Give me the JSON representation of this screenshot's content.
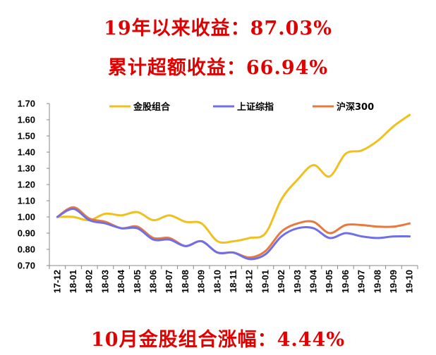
{
  "headlines": {
    "ytd_return": "19年以来收益：87.03%",
    "excess_return": "累计超额收益：66.94%",
    "monthly_gain": "10月金股组合涨幅：4.44%"
  },
  "chart_data": {
    "type": "line",
    "x": [
      "17-12",
      "18-01",
      "18-02",
      "18-03",
      "18-04",
      "18-05",
      "18-06",
      "18-07",
      "18-08",
      "18-09",
      "18-10",
      "18-11",
      "18-12",
      "19-01",
      "19-02",
      "19-03",
      "19-04",
      "19-05",
      "19-06",
      "19-07",
      "19-08",
      "19-09",
      "19-10"
    ],
    "ylim": [
      0.7,
      1.7
    ],
    "yticks": [
      "0.70",
      "0.80",
      "0.90",
      "1.00",
      "1.10",
      "1.20",
      "1.30",
      "1.40",
      "1.50",
      "1.60",
      "1.70"
    ],
    "legend_position": "top",
    "grid": false,
    "series": [
      {
        "name": "金股组合",
        "color": "#f0c020",
        "values": [
          1.0,
          1.0,
          0.98,
          1.02,
          1.01,
          1.03,
          0.98,
          1.01,
          0.97,
          0.96,
          0.85,
          0.85,
          0.87,
          0.9,
          1.11,
          1.23,
          1.32,
          1.25,
          1.39,
          1.41,
          1.47,
          1.56,
          1.63
        ]
      },
      {
        "name": "上证综指",
        "color": "#6f6fe8",
        "values": [
          1.0,
          1.05,
          0.98,
          0.96,
          0.93,
          0.93,
          0.86,
          0.86,
          0.82,
          0.85,
          0.78,
          0.78,
          0.74,
          0.77,
          0.88,
          0.93,
          0.93,
          0.87,
          0.9,
          0.88,
          0.87,
          0.88,
          0.88
        ]
      },
      {
        "name": "沪深300",
        "color": "#e8793c",
        "values": [
          1.0,
          1.06,
          0.99,
          0.97,
          0.93,
          0.94,
          0.87,
          0.87,
          0.82,
          0.85,
          0.78,
          0.78,
          0.75,
          0.79,
          0.91,
          0.96,
          0.97,
          0.9,
          0.95,
          0.95,
          0.94,
          0.94,
          0.96
        ]
      }
    ]
  }
}
